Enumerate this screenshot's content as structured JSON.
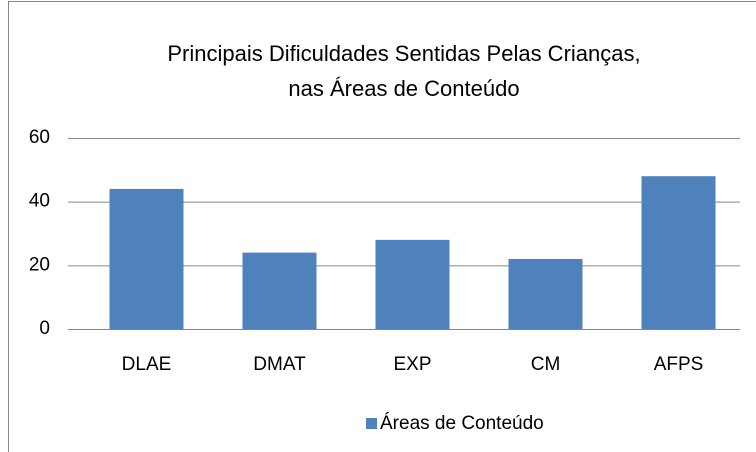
{
  "chart_data": {
    "type": "bar",
    "title": [
      "Principais Dificuldades Sentidas Pelas Crianças,",
      "nas Áreas de Conteúdo"
    ],
    "categories": [
      "DLAE",
      "DMAT",
      "EXP",
      "CM",
      "AFPS"
    ],
    "series": [
      {
        "name": "Áreas de Conteúdo",
        "color": "#4f81bd",
        "values": [
          44,
          24,
          28,
          22,
          48
        ]
      }
    ],
    "ylim": [
      0,
      60
    ],
    "yticks": [
      0,
      20,
      40,
      60
    ],
    "grid": true,
    "legend": "bottom"
  }
}
